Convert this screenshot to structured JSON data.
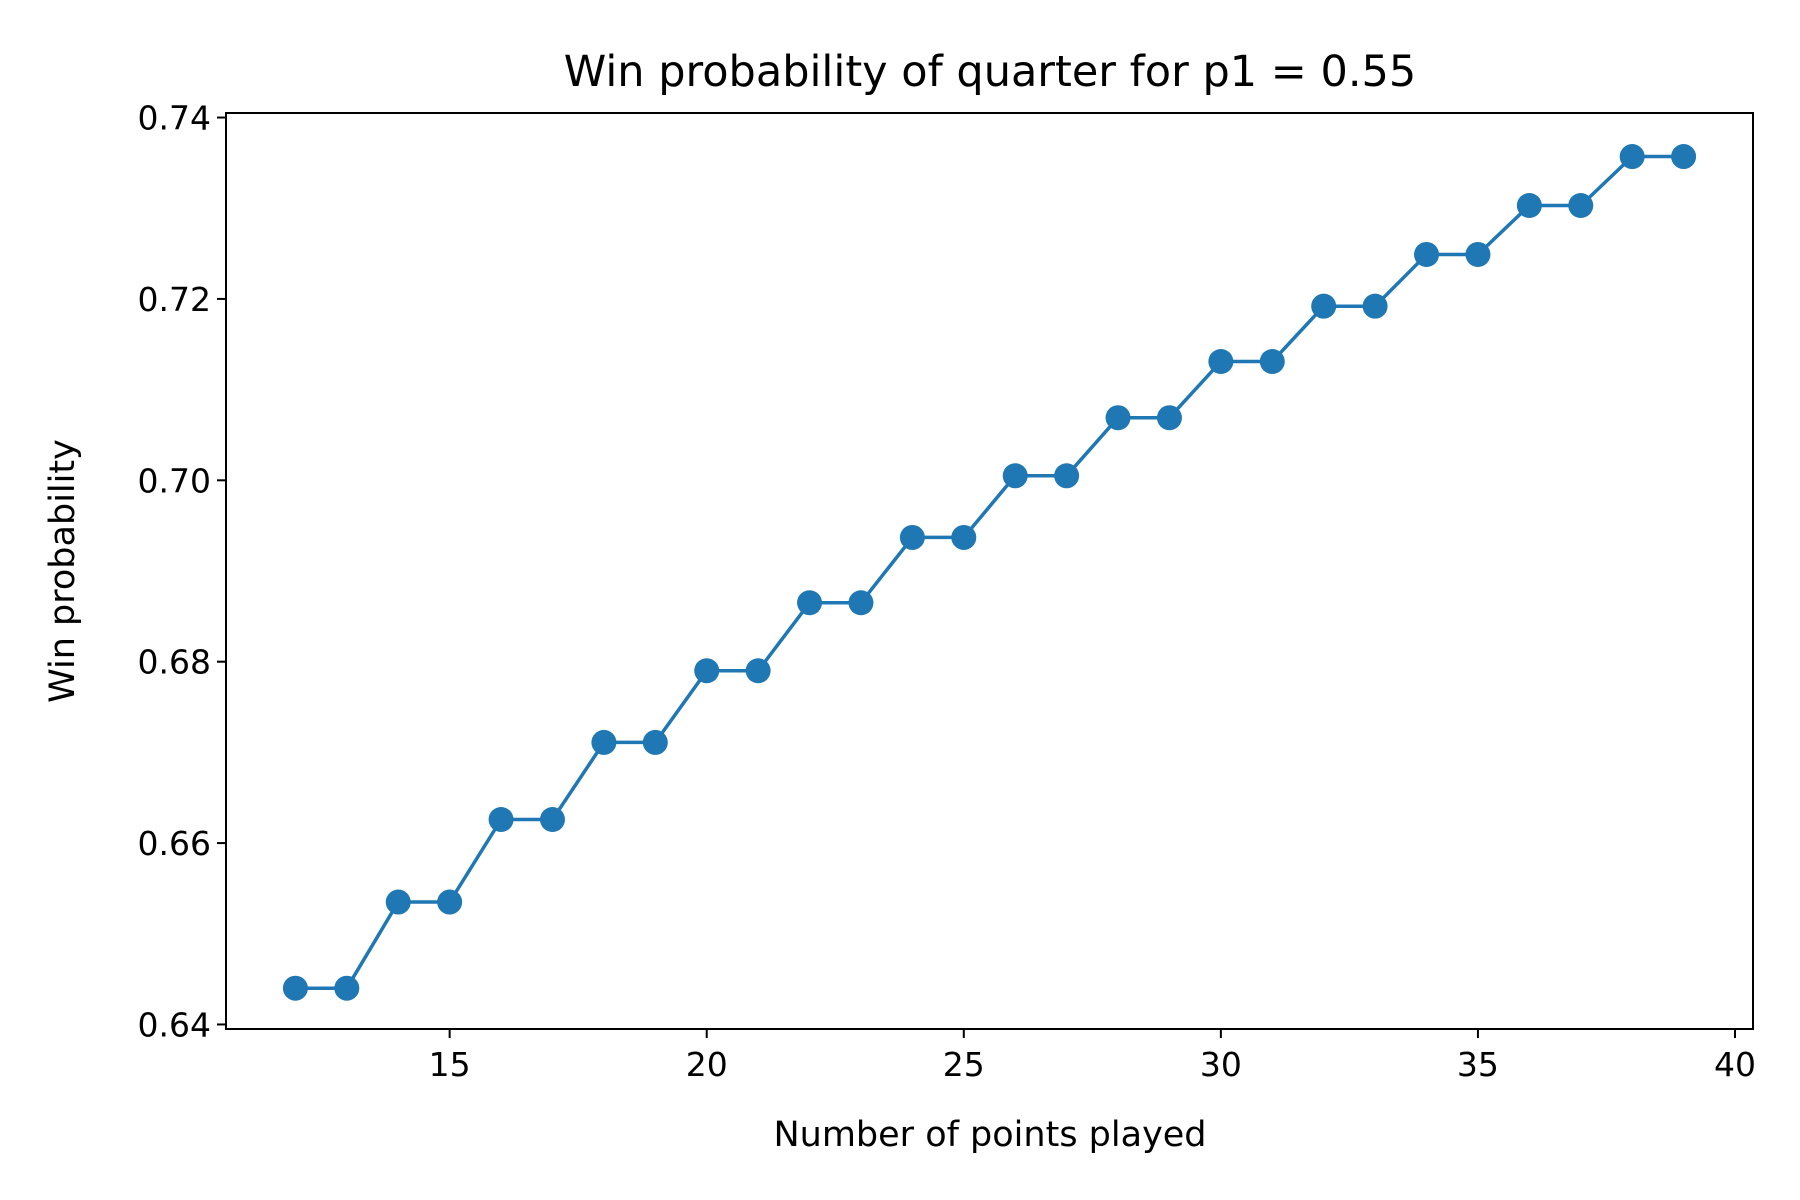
{
  "chart_data": {
    "type": "line",
    "title": "Win probability of quarter for p1 = 0.55",
    "xlabel": "Number of points played",
    "ylabel": "Win probability",
    "xlim": [
      10.65,
      40.35
    ],
    "ylim": [
      0.6395,
      0.7405
    ],
    "xticks": [
      15,
      20,
      25,
      30,
      35,
      40
    ],
    "xtick_labels": [
      "15",
      "20",
      "25",
      "30",
      "35",
      "40"
    ],
    "yticks": [
      0.64,
      0.66,
      0.68,
      0.7,
      0.72,
      0.74
    ],
    "ytick_labels": [
      "0.64",
      "0.66",
      "0.68",
      "0.70",
      "0.72",
      "0.74"
    ],
    "grid": false,
    "marker": "circle",
    "color": "#1f77b4",
    "series": [
      {
        "x": [
          12,
          13,
          14,
          15,
          16,
          17,
          18,
          19,
          20,
          21,
          22,
          23,
          24,
          25,
          26,
          27,
          28,
          29,
          30,
          31,
          32,
          33,
          34,
          35,
          36,
          37,
          38,
          39
        ],
        "values": [
          0.644,
          0.644,
          0.6535,
          0.6535,
          0.6626,
          0.6626,
          0.6711,
          0.6711,
          0.679,
          0.679,
          0.6865,
          0.6865,
          0.6937,
          0.6937,
          0.7005,
          0.7005,
          0.7069,
          0.7069,
          0.7131,
          0.7131,
          0.7192,
          0.7192,
          0.7249,
          0.7249,
          0.7303,
          0.7303,
          0.7357,
          0.7357
        ]
      }
    ]
  }
}
